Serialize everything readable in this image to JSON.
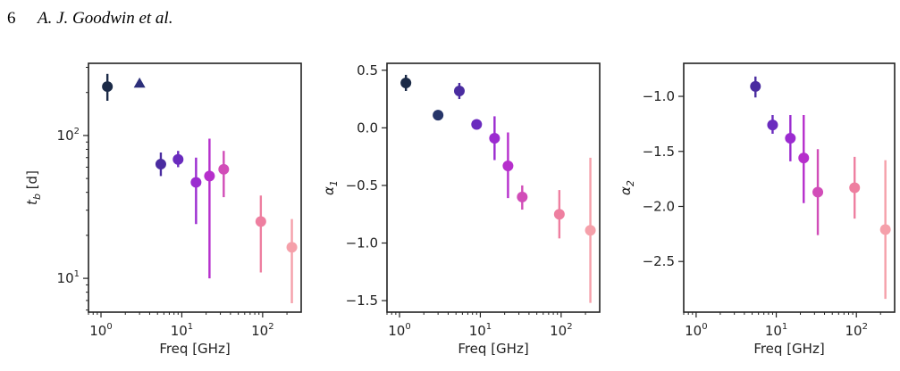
{
  "header": {
    "page_number": "6",
    "authors": "A. J. Goodwin et al."
  },
  "chart_data": [
    {
      "type": "scatter",
      "xlabel": "Freq [GHz]",
      "ylabel_html": "t_b [d]",
      "ylabel_main": "t",
      "ylabel_sub": "b",
      "ylabel_tail": " [d]",
      "xscale": "log",
      "yscale": "log",
      "xlim": [
        0.7,
        300
      ],
      "ylim": [
        5.8,
        320
      ],
      "xticks": [
        {
          "v": 1,
          "base": "10",
          "exp": "0"
        },
        {
          "v": 10,
          "base": "10",
          "exp": "1"
        },
        {
          "v": 100,
          "base": "10",
          "exp": "2"
        }
      ],
      "yticks": [
        {
          "v": 10,
          "base": "10",
          "exp": "1"
        },
        {
          "v": 100,
          "base": "10",
          "exp": "2"
        }
      ],
      "points": [
        {
          "x": 1.2,
          "y": 220,
          "lo": 175,
          "hi": 270,
          "color": "#1b2a47",
          "marker": "circle"
        },
        {
          "x": 3.0,
          "y": 232,
          "lo": null,
          "hi": null,
          "color": "#2c2f7a",
          "marker": "triangle"
        },
        {
          "x": 5.5,
          "y": 63,
          "lo": 52,
          "hi": 76,
          "color": "#4a2ca0",
          "marker": "circle"
        },
        {
          "x": 9.0,
          "y": 68,
          "lo": 60,
          "hi": 78,
          "color": "#6a2bbe",
          "marker": "circle"
        },
        {
          "x": 15,
          "y": 47,
          "lo": 24,
          "hi": 70,
          "color": "#9b2bd0",
          "marker": "circle"
        },
        {
          "x": 22,
          "y": 52,
          "lo": 10,
          "hi": 95,
          "color": "#b62fcc",
          "marker": "circle"
        },
        {
          "x": 33,
          "y": 58,
          "lo": 37,
          "hi": 78,
          "color": "#d14db8",
          "marker": "circle"
        },
        {
          "x": 95,
          "y": 25,
          "lo": 11,
          "hi": 38,
          "color": "#ee7fa0",
          "marker": "circle"
        },
        {
          "x": 230,
          "y": 16.5,
          "lo": 6.7,
          "hi": 26,
          "color": "#f5a0aa",
          "marker": "circle"
        }
      ]
    },
    {
      "type": "scatter",
      "xlabel": "Freq [GHz]",
      "ylabel_main": "α",
      "ylabel_sub": "1",
      "ylabel_tail": "",
      "xscale": "log",
      "yscale": "linear",
      "xlim": [
        0.7,
        300
      ],
      "ylim": [
        -1.6,
        0.56
      ],
      "xticks": [
        {
          "v": 1,
          "base": "10",
          "exp": "0"
        },
        {
          "v": 10,
          "base": "10",
          "exp": "1"
        },
        {
          "v": 100,
          "base": "10",
          "exp": "2"
        }
      ],
      "yticks": [
        {
          "v": 0.5,
          "label": "0.5"
        },
        {
          "v": 0.0,
          "label": "0.0"
        },
        {
          "v": -0.5,
          "label": "−0.5"
        },
        {
          "v": -1.0,
          "label": "−1.0"
        },
        {
          "v": -1.5,
          "label": "−1.5"
        }
      ],
      "points": [
        {
          "x": 1.2,
          "y": 0.39,
          "lo": 0.32,
          "hi": 0.46,
          "color": "#1b2a47",
          "marker": "circle"
        },
        {
          "x": 3.0,
          "y": 0.11,
          "lo": null,
          "hi": null,
          "color": "#263569",
          "marker": "circle"
        },
        {
          "x": 5.5,
          "y": 0.32,
          "lo": 0.25,
          "hi": 0.39,
          "color": "#4a2ca0",
          "marker": "circle"
        },
        {
          "x": 9.0,
          "y": 0.03,
          "lo": null,
          "hi": null,
          "color": "#6a2bbe",
          "marker": "circle"
        },
        {
          "x": 15,
          "y": -0.09,
          "lo": -0.28,
          "hi": 0.1,
          "color": "#9b2bd0",
          "marker": "circle"
        },
        {
          "x": 22,
          "y": -0.33,
          "lo": -0.61,
          "hi": -0.04,
          "color": "#b62fcc",
          "marker": "circle"
        },
        {
          "x": 33,
          "y": -0.6,
          "lo": -0.71,
          "hi": -0.5,
          "color": "#d14db8",
          "marker": "circle"
        },
        {
          "x": 95,
          "y": -0.75,
          "lo": -0.96,
          "hi": -0.54,
          "color": "#ee7fa0",
          "marker": "circle"
        },
        {
          "x": 230,
          "y": -0.89,
          "lo": -1.52,
          "hi": -0.26,
          "color": "#f5a0aa",
          "marker": "circle"
        }
      ]
    },
    {
      "type": "scatter",
      "xlabel": "Freq [GHz]",
      "ylabel_main": "α",
      "ylabel_sub": "2",
      "ylabel_tail": "",
      "xscale": "log",
      "yscale": "linear",
      "xlim": [
        0.7,
        300
      ],
      "ylim": [
        -2.96,
        -0.7
      ],
      "xticks": [
        {
          "v": 1,
          "base": "10",
          "exp": "0"
        },
        {
          "v": 10,
          "base": "10",
          "exp": "1"
        },
        {
          "v": 100,
          "base": "10",
          "exp": "2"
        }
      ],
      "yticks": [
        {
          "v": -1.0,
          "label": "−1.0"
        },
        {
          "v": -1.5,
          "label": "−1.5"
        },
        {
          "v": -2.0,
          "label": "−2.0"
        },
        {
          "v": -2.5,
          "label": "−2.5"
        }
      ],
      "points": [
        {
          "x": 5.5,
          "y": -0.91,
          "lo": -1.01,
          "hi": -0.82,
          "color": "#4a2ca0",
          "marker": "circle"
        },
        {
          "x": 9.0,
          "y": -1.26,
          "lo": -1.34,
          "hi": -1.17,
          "color": "#6a2bbe",
          "marker": "circle"
        },
        {
          "x": 15,
          "y": -1.38,
          "lo": -1.59,
          "hi": -1.17,
          "color": "#9b2bd0",
          "marker": "circle"
        },
        {
          "x": 22,
          "y": -1.56,
          "lo": -1.97,
          "hi": -1.17,
          "color": "#b62fcc",
          "marker": "circle"
        },
        {
          "x": 33,
          "y": -1.87,
          "lo": -2.26,
          "hi": -1.48,
          "color": "#d14db8",
          "marker": "circle"
        },
        {
          "x": 95,
          "y": -1.83,
          "lo": -2.11,
          "hi": -1.55,
          "color": "#ee7fa0",
          "marker": "circle"
        },
        {
          "x": 230,
          "y": -2.21,
          "lo": -2.84,
          "hi": -1.58,
          "color": "#f5a0aa",
          "marker": "circle"
        }
      ]
    }
  ]
}
